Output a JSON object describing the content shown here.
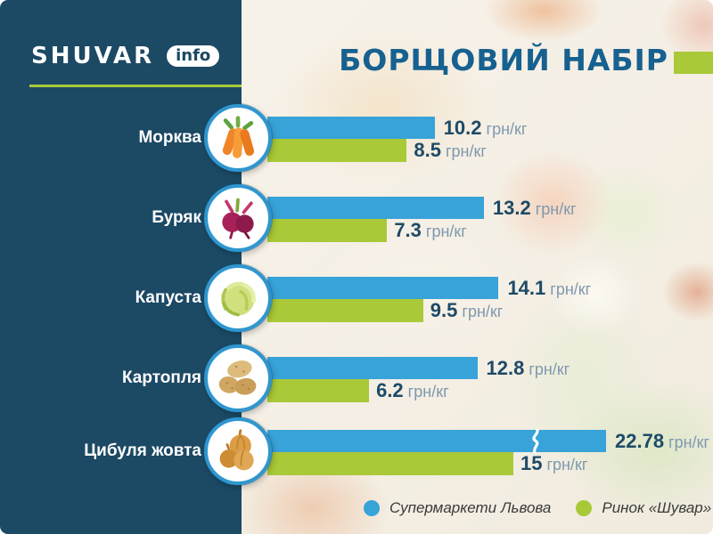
{
  "brand": {
    "logo_text": "SHUVAR",
    "logo_badge": "info"
  },
  "colors": {
    "sidebar": "#1c4964",
    "accent_green": "#a9c938",
    "title_blue": "#176190",
    "value_navy": "#1d4a68",
    "unit_blue_gray": "#7e99ae",
    "legend_text": "#3b3b3b",
    "supermarket_blue": "#38a3d8"
  },
  "chart_data": {
    "type": "bar",
    "orientation": "horizontal",
    "title": "БОРЩОВИЙ НАБІР",
    "unit": "грн/кг",
    "categories": [
      "Морква",
      "Буряк",
      "Капуста",
      "Картопля",
      "Цибуля жовта"
    ],
    "category_icons": [
      "carrot-icon",
      "beet-icon",
      "cabbage-icon",
      "potato-icon",
      "onion-icon"
    ],
    "series": [
      {
        "name": "Супермаркети Львова",
        "color": "#38a3d8",
        "values": [
          10.2,
          13.2,
          14.1,
          12.8,
          22.78
        ]
      },
      {
        "name": "Ринок «Шувар»",
        "color": "#a9c938",
        "values": [
          8.5,
          7.3,
          9.5,
          6.2,
          15
        ]
      }
    ],
    "axis_break": {
      "category": "Цибуля жовта",
      "series": "Супермаркети Львова"
    },
    "legend_position": "bottom"
  }
}
